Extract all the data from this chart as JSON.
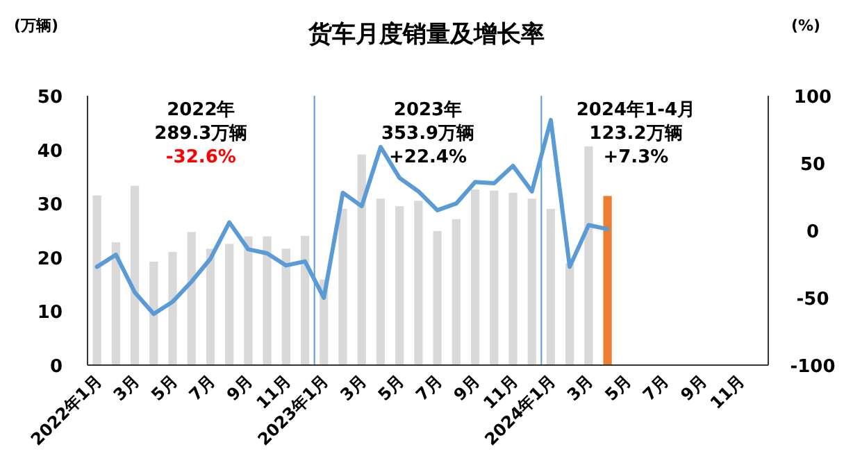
{
  "chart_data": {
    "type": "bar",
    "title": "货车月度销量及增长率",
    "ylabel": "(万辆)",
    "y2label": "(%)",
    "categories": [
      "2022年1月",
      null,
      "3月",
      null,
      "5月",
      null,
      "7月",
      null,
      "9月",
      null,
      "11月",
      null,
      "2023年1月",
      null,
      "3月",
      null,
      "5月",
      null,
      "7月",
      null,
      "9月",
      null,
      "11月",
      null,
      "2024年1月",
      null,
      "3月",
      null,
      "5月",
      null,
      "7月",
      null,
      "9月",
      null,
      "11月",
      null
    ],
    "series": [
      {
        "color": "#d9d9d9",
        "colors": [
          "#d9d9d9",
          "#d9d9d9",
          "#d9d9d9",
          "#d9d9d9",
          "#d9d9d9",
          "#d9d9d9",
          "#d9d9d9",
          "#d9d9d9",
          "#d9d9d9",
          "#d9d9d9",
          "#d9d9d9",
          "#d9d9d9",
          "#d9d9d9",
          "#d9d9d9",
          "#d9d9d9",
          "#d9d9d9",
          "#d9d9d9",
          "#d9d9d9",
          "#d9d9d9",
          "#d9d9d9",
          "#d9d9d9",
          "#d9d9d9",
          "#d9d9d9",
          "#d9d9d9",
          "#d9d9d9",
          "#d9d9d9",
          "#d9d9d9",
          "#ed7d31",
          null,
          null,
          null,
          null,
          null,
          null,
          null,
          null
        ],
        "values": [
          31.5,
          22.8,
          33.3,
          19.2,
          21.0,
          24.7,
          21.6,
          22.5,
          23.9,
          23.9,
          21.6,
          24.0,
          15.9,
          29.0,
          39.1,
          30.9,
          29.5,
          30.5,
          24.9,
          27.1,
          32.6,
          32.4,
          32.0,
          30.9,
          29.0,
          18.9,
          40.6,
          31.4,
          null,
          null,
          null,
          null,
          null,
          null,
          null,
          null
        ]
      },
      {
        "type": "line",
        "axis": "y2",
        "color": "#5b9bd5",
        "values": [
          -27,
          -18,
          -46,
          -62,
          -53,
          -38,
          -21,
          6,
          -14,
          -17,
          -26,
          -23,
          -50,
          28,
          18,
          62,
          39,
          29,
          15,
          20,
          36,
          35,
          48,
          29,
          82,
          -27,
          4,
          1,
          null,
          null,
          null,
          null,
          null,
          null,
          null,
          null
        ]
      }
    ],
    "ylim": [
      0,
      50
    ],
    "yticks": [
      0,
      10,
      20,
      30,
      40,
      50
    ],
    "y2lim": [
      -100,
      100
    ],
    "y2ticks": [
      -100,
      -50,
      0,
      50,
      100
    ],
    "annotations": [
      "2022年",
      "289.3万辆",
      "-32.6%",
      "2023年",
      "353.9万辆",
      "+22.4%",
      "2024年1-4月",
      "123.2万辆",
      "+7.3%"
    ],
    "grid": false
  }
}
